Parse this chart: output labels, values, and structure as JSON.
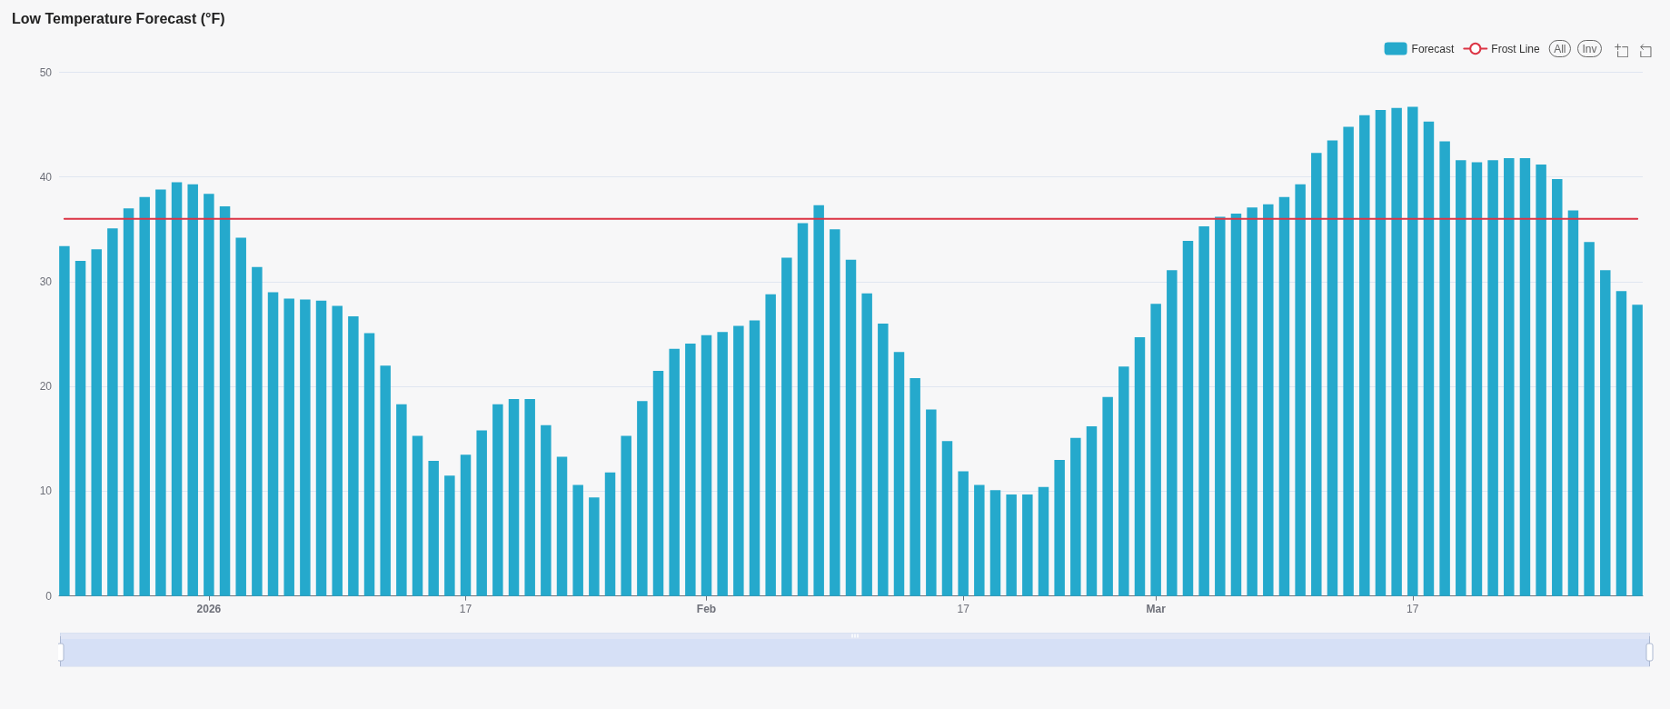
{
  "chart_data": {
    "type": "bar",
    "title": "Low Temperature Forecast (°F)",
    "x": [
      "2025-12-23",
      "2025-12-24",
      "2025-12-25",
      "2025-12-26",
      "2025-12-27",
      "2025-12-28",
      "2025-12-29",
      "2025-12-30",
      "2025-12-31",
      "2026-01-01",
      "2026-01-02",
      "2026-01-03",
      "2026-01-04",
      "2026-01-05",
      "2026-01-06",
      "2026-01-07",
      "2026-01-08",
      "2026-01-09",
      "2026-01-10",
      "2026-01-11",
      "2026-01-12",
      "2026-01-13",
      "2026-01-14",
      "2026-01-15",
      "2026-01-16",
      "2026-01-17",
      "2026-01-18",
      "2026-01-19",
      "2026-01-20",
      "2026-01-21",
      "2026-01-22",
      "2026-01-23",
      "2026-01-24",
      "2026-01-25",
      "2026-01-26",
      "2026-01-27",
      "2026-01-28",
      "2026-01-29",
      "2026-01-30",
      "2026-01-31",
      "2026-02-01",
      "2026-02-02",
      "2026-02-03",
      "2026-02-04",
      "2026-02-05",
      "2026-02-06",
      "2026-02-07",
      "2026-02-08",
      "2026-02-09",
      "2026-02-10",
      "2026-02-11",
      "2026-02-12",
      "2026-02-13",
      "2026-02-14",
      "2026-02-15",
      "2026-02-16",
      "2026-02-17",
      "2026-02-18",
      "2026-02-19",
      "2026-02-20",
      "2026-02-21",
      "2026-02-22",
      "2026-02-23",
      "2026-02-24",
      "2026-02-25",
      "2026-02-26",
      "2026-02-27",
      "2026-02-28",
      "2026-03-01",
      "2026-03-02",
      "2026-03-03",
      "2026-03-04",
      "2026-03-05",
      "2026-03-06",
      "2026-03-07",
      "2026-03-08",
      "2026-03-09",
      "2026-03-10",
      "2026-03-11",
      "2026-03-12",
      "2026-03-13",
      "2026-03-14",
      "2026-03-15",
      "2026-03-16",
      "2026-03-17",
      "2026-03-18",
      "2026-03-19",
      "2026-03-20",
      "2026-03-21",
      "2026-03-22",
      "2026-03-23",
      "2026-03-24",
      "2026-03-25",
      "2026-03-26",
      "2026-03-27",
      "2026-03-28",
      "2026-03-29",
      "2026-03-30",
      "2026-03-31"
    ],
    "series": [
      {
        "name": "Forecast",
        "color": "#25a9cc",
        "values": [
          33.4,
          32.0,
          33.1,
          35.1,
          37.0,
          38.1,
          38.8,
          39.5,
          39.3,
          38.4,
          37.2,
          34.2,
          31.4,
          29.0,
          28.4,
          28.3,
          28.2,
          27.7,
          26.7,
          25.1,
          22.0,
          18.3,
          15.3,
          12.9,
          11.5,
          13.5,
          15.8,
          18.3,
          18.8,
          18.8,
          16.3,
          13.3,
          10.6,
          9.4,
          11.8,
          15.3,
          18.6,
          21.5,
          23.6,
          24.1,
          24.9,
          25.2,
          25.8,
          26.3,
          28.8,
          32.3,
          35.6,
          37.3,
          35.0,
          32.1,
          28.9,
          26.0,
          23.3,
          20.8,
          17.8,
          14.8,
          11.9,
          10.6,
          10.1,
          9.7,
          9.7,
          10.4,
          13.0,
          15.1,
          16.2,
          19.0,
          21.9,
          24.7,
          27.9,
          31.1,
          33.9,
          35.3,
          36.2,
          36.5,
          37.1,
          37.4,
          38.1,
          39.3,
          42.3,
          43.5,
          44.8,
          45.9,
          46.4,
          46.6,
          46.7,
          45.3,
          43.4,
          41.6,
          41.4,
          41.6,
          41.8,
          41.8,
          41.2,
          39.8,
          36.8,
          33.8,
          31.1,
          29.1,
          27.8
        ]
      },
      {
        "name": "Frost Line",
        "type": "line",
        "color": "#dc3545",
        "values": [
          36,
          36,
          36,
          36,
          36,
          36,
          36,
          36,
          36,
          36,
          36,
          36,
          36,
          36,
          36,
          36,
          36,
          36,
          36,
          36,
          36,
          36,
          36,
          36,
          36,
          36,
          36,
          36,
          36,
          36,
          36,
          36,
          36,
          36,
          36,
          36,
          36,
          36,
          36,
          36,
          36,
          36,
          36,
          36,
          36,
          36,
          36,
          36,
          36,
          36,
          36,
          36,
          36,
          36,
          36,
          36,
          36,
          36,
          36,
          36,
          36,
          36,
          36,
          36,
          36,
          36,
          36,
          36,
          36,
          36,
          36,
          36,
          36,
          36,
          36,
          36,
          36,
          36,
          36,
          36,
          36,
          36,
          36,
          36,
          36,
          36,
          36,
          36,
          36,
          36,
          36,
          36,
          36,
          36,
          36,
          36,
          36,
          36,
          36
        ]
      }
    ],
    "xlim": [
      "2025-12-22T16:00",
      "2026-03-31T08:00"
    ],
    "xticks": [
      {
        "value": "2026-01-01",
        "label": "2026"
      },
      {
        "value": "2026-01-17",
        "label": "17"
      },
      {
        "value": "2026-02-01",
        "label": "Feb"
      },
      {
        "value": "2026-02-17",
        "label": "17"
      },
      {
        "value": "2026-03-01",
        "label": "Mar"
      },
      {
        "value": "2026-03-17",
        "label": "17"
      }
    ],
    "ylim": [
      0,
      50
    ],
    "yticks": [
      0,
      10,
      20,
      30,
      40,
      50
    ],
    "grid": "y",
    "legend": "top right",
    "marker": "none",
    "annotations": [
      "All",
      "Inv"
    ]
  }
}
